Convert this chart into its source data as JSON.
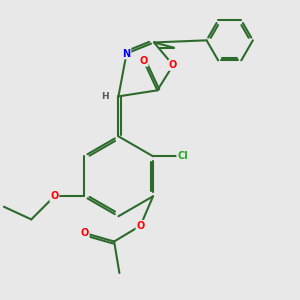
{
  "background_color": "#e8e8e8",
  "atom_colors": {
    "O": "#ff0000",
    "N": "#0000ff",
    "Cl": "#22aa22",
    "C": "#2d6b2d",
    "H": "#555555"
  },
  "bond_color": "#2d6b2d",
  "bond_width": 1.5,
  "dbo": 0.022,
  "figsize": [
    3.0,
    3.0
  ],
  "dpi": 100
}
